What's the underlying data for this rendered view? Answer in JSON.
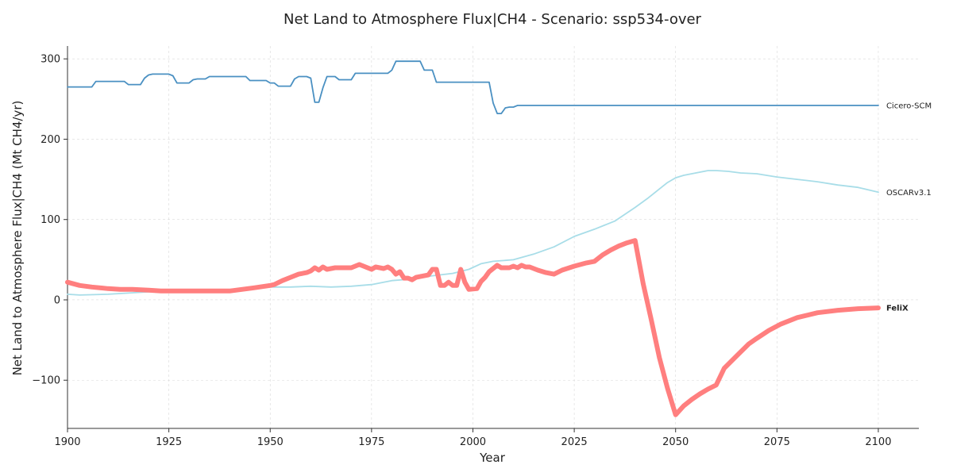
{
  "chart_data": {
    "type": "line",
    "title": "Net Land to Atmosphere Flux|CH4 - Scenario: ssp534-over",
    "xlabel": "Year",
    "ylabel": "Net Land to Atmosphere Flux|CH4 (Mt CH4/yr)",
    "xlim": [
      1900,
      2110
    ],
    "ylim": [
      -160,
      316
    ],
    "xticks": [
      1900,
      1925,
      1950,
      1975,
      2000,
      2025,
      2050,
      2075,
      2100
    ],
    "yticks": [
      -100,
      0,
      100,
      200,
      300
    ],
    "grid": true,
    "series": [
      {
        "name": "Cicero-SCM",
        "color": "#4a90c2",
        "emphasis": false,
        "points": [
          [
            1900,
            265
          ],
          [
            1906,
            265
          ],
          [
            1907,
            272
          ],
          [
            1914,
            272
          ],
          [
            1915,
            268
          ],
          [
            1918,
            268
          ],
          [
            1919,
            276
          ],
          [
            1920,
            280
          ],
          [
            1921,
            281
          ],
          [
            1925,
            281
          ],
          [
            1926,
            279
          ],
          [
            1927,
            270
          ],
          [
            1930,
            270
          ],
          [
            1931,
            274
          ],
          [
            1932,
            275
          ],
          [
            1934,
            275
          ],
          [
            1935,
            278
          ],
          [
            1944,
            278
          ],
          [
            1945,
            273
          ],
          [
            1949,
            273
          ],
          [
            1950,
            270
          ],
          [
            1951,
            270
          ],
          [
            1952,
            266
          ],
          [
            1955,
            266
          ],
          [
            1956,
            275
          ],
          [
            1957,
            278
          ],
          [
            1959,
            278
          ],
          [
            1960,
            276
          ],
          [
            1961,
            246
          ],
          [
            1962,
            246
          ],
          [
            1963,
            264
          ],
          [
            1964,
            278
          ],
          [
            1966,
            278
          ],
          [
            1967,
            274
          ],
          [
            1970,
            274
          ],
          [
            1971,
            282
          ],
          [
            1979,
            282
          ],
          [
            1980,
            286
          ],
          [
            1981,
            297
          ],
          [
            1987,
            297
          ],
          [
            1988,
            286
          ],
          [
            1990,
            286
          ],
          [
            1991,
            271
          ],
          [
            2004,
            271
          ],
          [
            2005,
            245
          ],
          [
            2006,
            232
          ],
          [
            2007,
            232
          ],
          [
            2008,
            239
          ],
          [
            2009,
            240
          ],
          [
            2010,
            240
          ],
          [
            2011,
            242
          ],
          [
            2100,
            242
          ]
        ]
      },
      {
        "name": "OSCARv3.1",
        "color": "#a8dde8",
        "emphasis": false,
        "points": [
          [
            1900,
            7
          ],
          [
            1903,
            6
          ],
          [
            1910,
            7
          ],
          [
            1920,
            10
          ],
          [
            1930,
            12
          ],
          [
            1940,
            13
          ],
          [
            1950,
            16
          ],
          [
            1955,
            16
          ],
          [
            1960,
            17
          ],
          [
            1965,
            16
          ],
          [
            1970,
            17
          ],
          [
            1975,
            19
          ],
          [
            1980,
            24
          ],
          [
            1985,
            26
          ],
          [
            1990,
            30
          ],
          [
            1995,
            33
          ],
          [
            1999,
            38
          ],
          [
            2002,
            45
          ],
          [
            2005,
            48
          ],
          [
            2010,
            50
          ],
          [
            2015,
            57
          ],
          [
            2020,
            66
          ],
          [
            2025,
            79
          ],
          [
            2030,
            88
          ],
          [
            2035,
            98
          ],
          [
            2040,
            115
          ],
          [
            2043,
            126
          ],
          [
            2046,
            138
          ],
          [
            2048,
            146
          ],
          [
            2050,
            152
          ],
          [
            2052,
            155
          ],
          [
            2055,
            158
          ],
          [
            2058,
            161
          ],
          [
            2060,
            161
          ],
          [
            2063,
            160
          ],
          [
            2066,
            158
          ],
          [
            2070,
            157
          ],
          [
            2075,
            153
          ],
          [
            2080,
            150
          ],
          [
            2085,
            147
          ],
          [
            2090,
            143
          ],
          [
            2095,
            140
          ],
          [
            2100,
            134
          ]
        ]
      },
      {
        "name": "FeliX",
        "color": "#ff7f7f",
        "emphasis": true,
        "points": [
          [
            1900,
            22
          ],
          [
            1903,
            18
          ],
          [
            1906,
            16
          ],
          [
            1910,
            14
          ],
          [
            1913,
            13
          ],
          [
            1916,
            13
          ],
          [
            1920,
            12
          ],
          [
            1923,
            11
          ],
          [
            1926,
            11
          ],
          [
            1930,
            11
          ],
          [
            1933,
            11
          ],
          [
            1936,
            11
          ],
          [
            1940,
            11
          ],
          [
            1943,
            13
          ],
          [
            1946,
            15
          ],
          [
            1950,
            18
          ],
          [
            1951,
            19
          ],
          [
            1953,
            24
          ],
          [
            1955,
            28
          ],
          [
            1957,
            32
          ],
          [
            1959,
            34
          ],
          [
            1960,
            36
          ],
          [
            1961,
            40
          ],
          [
            1962,
            37
          ],
          [
            1963,
            41
          ],
          [
            1964,
            38
          ],
          [
            1966,
            40
          ],
          [
            1968,
            40
          ],
          [
            1970,
            40
          ],
          [
            1972,
            44
          ],
          [
            1974,
            40
          ],
          [
            1975,
            38
          ],
          [
            1976,
            41
          ],
          [
            1978,
            39
          ],
          [
            1979,
            41
          ],
          [
            1980,
            38
          ],
          [
            1981,
            32
          ],
          [
            1982,
            35
          ],
          [
            1983,
            27
          ],
          [
            1984,
            27
          ],
          [
            1985,
            25
          ],
          [
            1986,
            28
          ],
          [
            1987,
            29
          ],
          [
            1989,
            31
          ],
          [
            1990,
            38
          ],
          [
            1991,
            38
          ],
          [
            1992,
            18
          ],
          [
            1993,
            18
          ],
          [
            1994,
            22
          ],
          [
            1995,
            18
          ],
          [
            1996,
            18
          ],
          [
            1997,
            38
          ],
          [
            1998,
            22
          ],
          [
            1999,
            13
          ],
          [
            2001,
            14
          ],
          [
            2002,
            23
          ],
          [
            2003,
            28
          ],
          [
            2004,
            35
          ],
          [
            2006,
            43
          ],
          [
            2007,
            40
          ],
          [
            2009,
            40
          ],
          [
            2010,
            42
          ],
          [
            2011,
            40
          ],
          [
            2012,
            43
          ],
          [
            2013,
            41
          ],
          [
            2014,
            41
          ],
          [
            2016,
            37
          ],
          [
            2018,
            34
          ],
          [
            2020,
            32
          ],
          [
            2022,
            37
          ],
          [
            2025,
            42
          ],
          [
            2028,
            46
          ],
          [
            2030,
            48
          ],
          [
            2032,
            56
          ],
          [
            2034,
            62
          ],
          [
            2036,
            67
          ],
          [
            2038,
            71
          ],
          [
            2040,
            74
          ],
          [
            2042,
            20
          ],
          [
            2044,
            -25
          ],
          [
            2046,
            -72
          ],
          [
            2048,
            -110
          ],
          [
            2050,
            -143
          ],
          [
            2052,
            -132
          ],
          [
            2054,
            -124
          ],
          [
            2056,
            -117
          ],
          [
            2058,
            -111
          ],
          [
            2060,
            -106
          ],
          [
            2062,
            -85
          ],
          [
            2065,
            -70
          ],
          [
            2068,
            -55
          ],
          [
            2070,
            -48
          ],
          [
            2073,
            -38
          ],
          [
            2076,
            -30
          ],
          [
            2080,
            -22
          ],
          [
            2085,
            -16
          ],
          [
            2090,
            -13
          ],
          [
            2095,
            -11
          ],
          [
            2100,
            -10
          ]
        ]
      }
    ]
  }
}
